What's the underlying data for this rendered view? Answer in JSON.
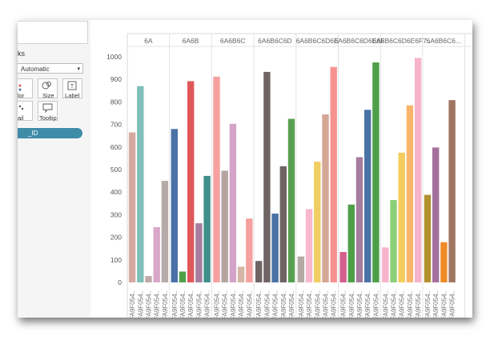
{
  "marks_card": {
    "title_partial": "ks",
    "mark_type": "Automatic",
    "buttons": [
      {
        "label": "lor",
        "icon": "color-dots-icon"
      },
      {
        "label": "Size",
        "icon": "size-icon"
      },
      {
        "label": "Label",
        "icon": "label-icon"
      },
      {
        "label": "ail",
        "icon": "detail-icon"
      },
      {
        "label": "Tooltip",
        "icon": "tooltip-icon"
      }
    ],
    "pill_label": "_ID"
  },
  "chart_data": {
    "type": "bar",
    "ylim": [
      0,
      1000
    ],
    "y_ticks": [
      0,
      100,
      200,
      300,
      400,
      500,
      600,
      700,
      800,
      900,
      1000
    ],
    "x_tick_label": "FA9F054..",
    "panels": [
      {
        "header": "6A",
        "bars": [
          {
            "value": 665,
            "color": "#d6a9a0"
          },
          {
            "value": 870,
            "color": "#7fbfb7"
          },
          {
            "value": 28,
            "color": "#bfaaa5"
          },
          {
            "value": 245,
            "color": "#d9a8c9"
          },
          {
            "value": 450,
            "color": "#b6aaa8"
          }
        ]
      },
      {
        "header": "6A6B",
        "bars": [
          {
            "value": 680,
            "color": "#4a72a6"
          },
          {
            "value": 48,
            "color": "#4e9f48"
          },
          {
            "value": 892,
            "color": "#e05759"
          },
          {
            "value": 262,
            "color": "#a77c9e"
          },
          {
            "value": 472,
            "color": "#3f8f8b"
          }
        ]
      },
      {
        "header": "6A6B6C",
        "bars": [
          {
            "value": 912,
            "color": "#f6a19f"
          },
          {
            "value": 495,
            "color": "#b5a5a1"
          },
          {
            "value": 703,
            "color": "#d3a4c8"
          },
          {
            "value": 70,
            "color": "#d5b7a7"
          },
          {
            "value": 283,
            "color": "#f6a19f"
          }
        ]
      },
      {
        "header": "6A6B6C6D",
        "bars": [
          {
            "value": 95,
            "color": "#6f6464"
          },
          {
            "value": 933,
            "color": "#6f6464"
          },
          {
            "value": 305,
            "color": "#4a72a6"
          },
          {
            "value": 515,
            "color": "#6f6464"
          },
          {
            "value": 725,
            "color": "#57a052"
          }
        ]
      },
      {
        "header": "6A6B6C6D6E",
        "bars": [
          {
            "value": 115,
            "color": "#b5a9a6"
          },
          {
            "value": 325,
            "color": "#f7b8cc"
          },
          {
            "value": 535,
            "color": "#f1ce63"
          },
          {
            "value": 745,
            "color": "#d5a896"
          },
          {
            "value": 955,
            "color": "#f6938f"
          }
        ]
      },
      {
        "header": "6A6B6C6D6E6F",
        "bars": [
          {
            "value": 135,
            "color": "#d35f8c"
          },
          {
            "value": 345,
            "color": "#4e9f48"
          },
          {
            "value": 555,
            "color": "#a67c9f"
          },
          {
            "value": 765,
            "color": "#4a72a6"
          },
          {
            "value": 975,
            "color": "#4e9f48"
          }
        ]
      },
      {
        "header": "6A6B6C6D6E6F7..",
        "bars": [
          {
            "value": 155,
            "color": "#f7b3cb"
          },
          {
            "value": 365,
            "color": "#8ccf78"
          },
          {
            "value": 575,
            "color": "#f4cc5c"
          },
          {
            "value": 785,
            "color": "#fbb56a"
          },
          {
            "value": 995,
            "color": "#f7b3cb"
          }
        ]
      },
      {
        "header": "6A6B6C6...",
        "bars": [
          {
            "value": 388,
            "color": "#b2912e"
          },
          {
            "value": 598,
            "color": "#a4709e"
          },
          {
            "value": 178,
            "color": "#f08b2a"
          },
          {
            "value": 808,
            "color": "#9f7662"
          }
        ]
      }
    ]
  }
}
